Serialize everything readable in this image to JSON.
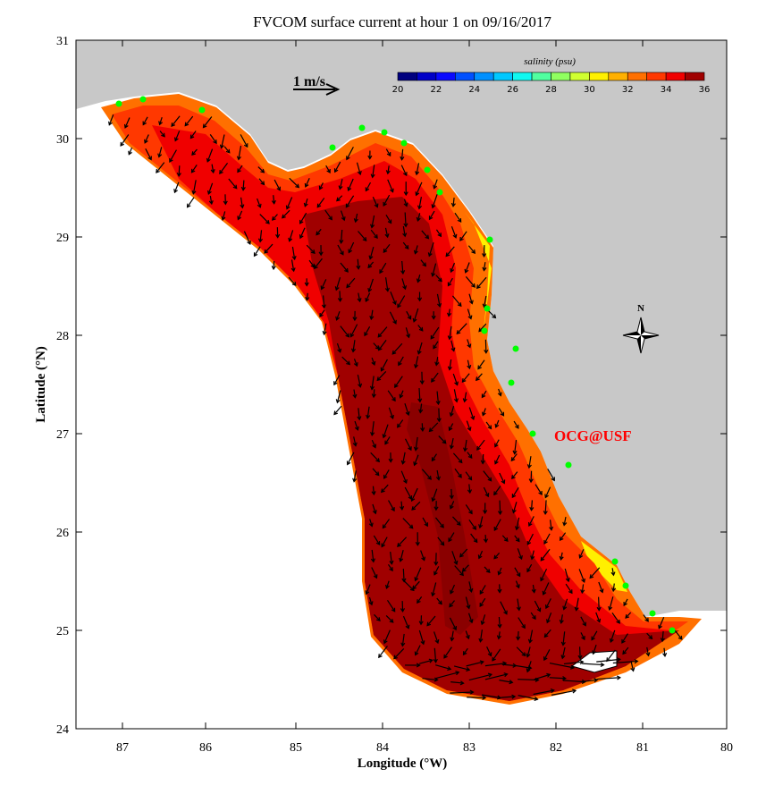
{
  "title": "FVCOM surface current at hour 1 on 09/16/2017",
  "xlabel": "Longitude (°W)",
  "ylabel": "Latitude (°N)",
  "x_ticks": [
    "87",
    "86",
    "85",
    "84",
    "83",
    "82",
    "81",
    "80"
  ],
  "y_ticks": [
    "31",
    "30",
    "29",
    "28",
    "27",
    "26",
    "25",
    "24"
  ],
  "scale_arrow_label": "1 m/s",
  "north_label": "N",
  "watermark": "OCG@USF",
  "colorbar": {
    "title": "salinity (psu)",
    "range": [
      20,
      36
    ],
    "tick_labels": [
      "20",
      "22",
      "24",
      "26",
      "28",
      "30",
      "32",
      "34",
      "36"
    ],
    "colors": [
      "#00007f",
      "#0000c8",
      "#0a0aff",
      "#0050ff",
      "#0090ff",
      "#00c8ff",
      "#10f8f0",
      "#50ffa0",
      "#90ff60",
      "#d0ff30",
      "#fff000",
      "#ffb000",
      "#ff7000",
      "#ff3800",
      "#f00000",
      "#a00000"
    ]
  },
  "colors": {
    "land": "#c8c8c8",
    "station": "#00ff00",
    "watermark": "#ff0000"
  }
}
